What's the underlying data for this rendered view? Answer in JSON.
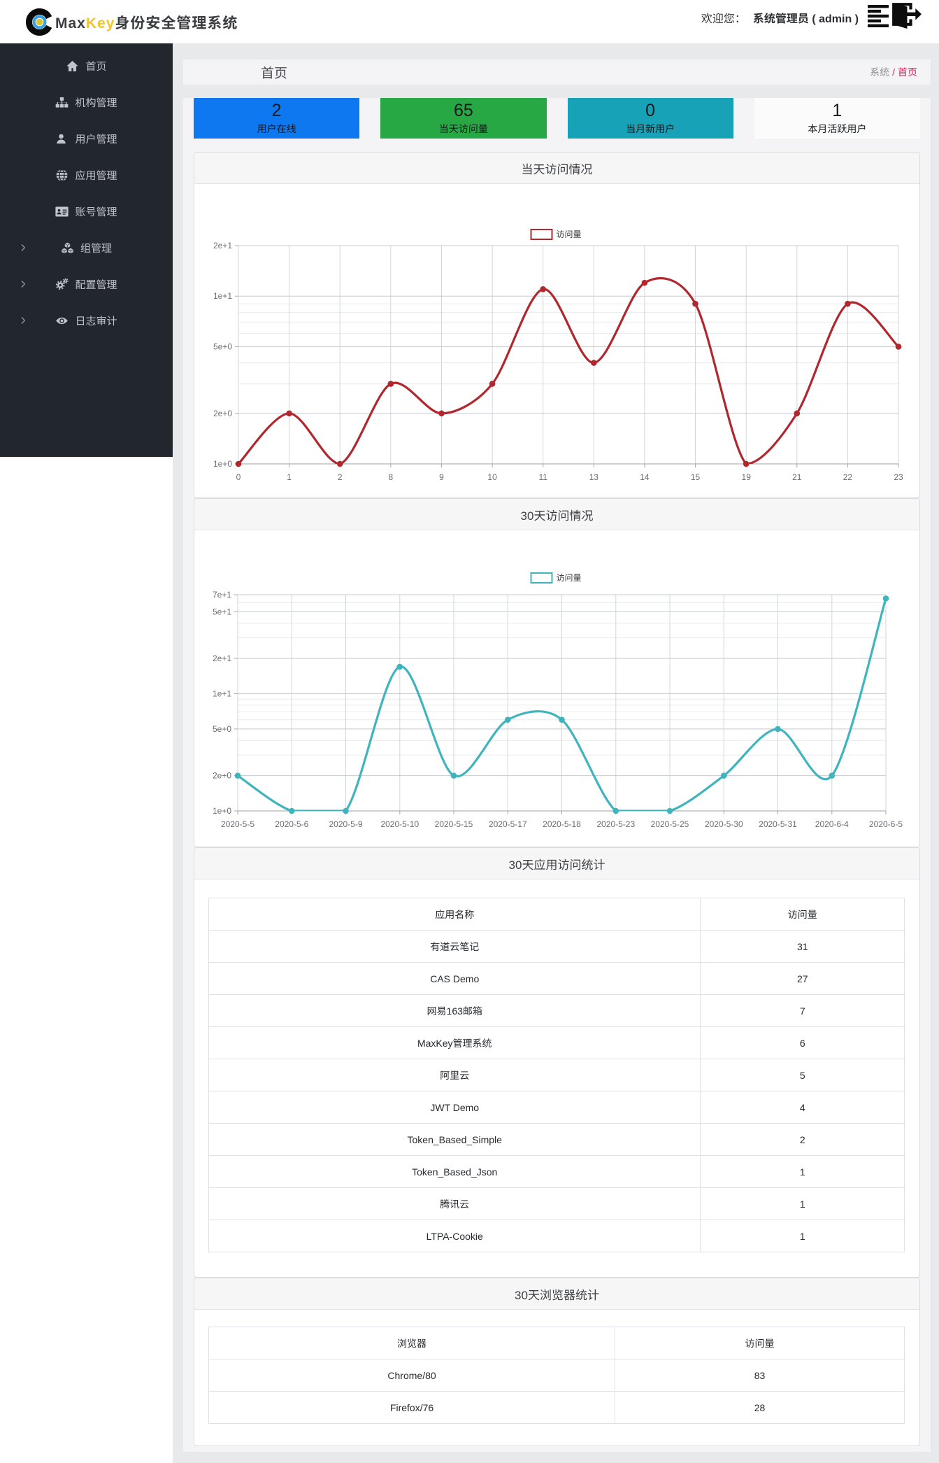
{
  "header": {
    "brand_max": "Max",
    "brand_key": "Key",
    "brand_suffix": "身份安全管理系统",
    "welcome_label": "欢迎您：",
    "user_display": "系统管理员 ( admin )"
  },
  "sidebar": {
    "items": [
      {
        "label": "首页",
        "icon": "home-icon",
        "expandable": false
      },
      {
        "label": "机构管理",
        "icon": "sitemap-icon",
        "expandable": false
      },
      {
        "label": "用户管理",
        "icon": "user-icon",
        "expandable": false
      },
      {
        "label": "应用管理",
        "icon": "globe-icon",
        "expandable": false
      },
      {
        "label": "账号管理",
        "icon": "id-card-icon",
        "expandable": false
      },
      {
        "label": "组管理",
        "icon": "cubes-icon",
        "expandable": true
      },
      {
        "label": "配置管理",
        "icon": "cogs-icon",
        "expandable": true
      },
      {
        "label": "日志审计",
        "icon": "eye-icon",
        "expandable": true
      }
    ]
  },
  "breadcrumb": {
    "page_title": "首页",
    "crumb_root": "系统",
    "separator": "/",
    "crumb_current": "首页",
    "current_color": "#da215c"
  },
  "stats": [
    {
      "value": "2",
      "label": "用户在线",
      "bg": "#0d78f0",
      "fg": "#15171a"
    },
    {
      "value": "65",
      "label": "当天访问量",
      "bg": "#28a745",
      "fg": "#15171a"
    },
    {
      "value": "0",
      "label": "当月新用户",
      "bg": "#17a2b8",
      "fg": "#15171a"
    },
    {
      "value": "1",
      "label": "本月活跃用户",
      "bg": "#fbfbfc",
      "fg": "#15171a"
    }
  ],
  "panels": [
    {
      "title": "当天访问情况",
      "kind": "chart"
    },
    {
      "title": "30天访问情况",
      "kind": "chart"
    },
    {
      "title": "30天应用访问统计",
      "kind": "table"
    },
    {
      "title": "30天浏览器统计",
      "kind": "table"
    }
  ],
  "chart_data": [
    {
      "type": "line",
      "title": "当天访问情况",
      "legend": "访问量",
      "categories": [
        "0",
        "1",
        "2",
        "8",
        "9",
        "10",
        "11",
        "13",
        "14",
        "15",
        "19",
        "21",
        "22",
        "23"
      ],
      "values": [
        1,
        2,
        1,
        3,
        2,
        3,
        11,
        4,
        12,
        9,
        1,
        2,
        9,
        5
      ],
      "color": "#b0282e",
      "yscale": "log",
      "ylim": [
        1,
        20
      ],
      "y_ticks": [
        "1e+0",
        "2e+0",
        "5e+0",
        "1e+1",
        "2e+1"
      ],
      "grid": true,
      "legend_position": "top-center"
    },
    {
      "type": "line",
      "title": "30天访问情况",
      "legend": "访问量",
      "categories": [
        "2020-5-5",
        "2020-5-6",
        "2020-5-9",
        "2020-5-10",
        "2020-5-15",
        "2020-5-17",
        "2020-5-18",
        "2020-5-23",
        "2020-5-25",
        "2020-5-30",
        "2020-5-31",
        "2020-6-4",
        "2020-6-5"
      ],
      "values": [
        2,
        1,
        1,
        17,
        2,
        6,
        6,
        1,
        1,
        2,
        5,
        2,
        65
      ],
      "color": "#40b4bd",
      "yscale": "log",
      "ylim": [
        1,
        70
      ],
      "y_ticks": [
        "1e+0",
        "2e+0",
        "5e+0",
        "1e+1",
        "2e+1",
        "5e+1",
        "7e+1"
      ],
      "grid": true,
      "legend_position": "top-center"
    },
    {
      "type": "table",
      "title": "30天应用访问统计",
      "columns": [
        "应用名称",
        "访问量"
      ],
      "rows": [
        [
          "有道云笔记",
          "31"
        ],
        [
          "CAS Demo",
          "27"
        ],
        [
          "网易163邮箱",
          "7"
        ],
        [
          "MaxKey管理系统",
          "6"
        ],
        [
          "阿里云",
          "5"
        ],
        [
          "JWT Demo",
          "4"
        ],
        [
          "Token_Based_Simple",
          "2"
        ],
        [
          "Token_Based_Json",
          "1"
        ],
        [
          "腾讯云",
          "1"
        ],
        [
          "LTPA-Cookie",
          "1"
        ]
      ]
    },
    {
      "type": "table",
      "title": "30天浏览器统计",
      "columns": [
        "浏览器",
        "访问量"
      ],
      "rows": [
        [
          "Chrome/80",
          "83"
        ],
        [
          "Firefox/76",
          "28"
        ]
      ]
    }
  ]
}
